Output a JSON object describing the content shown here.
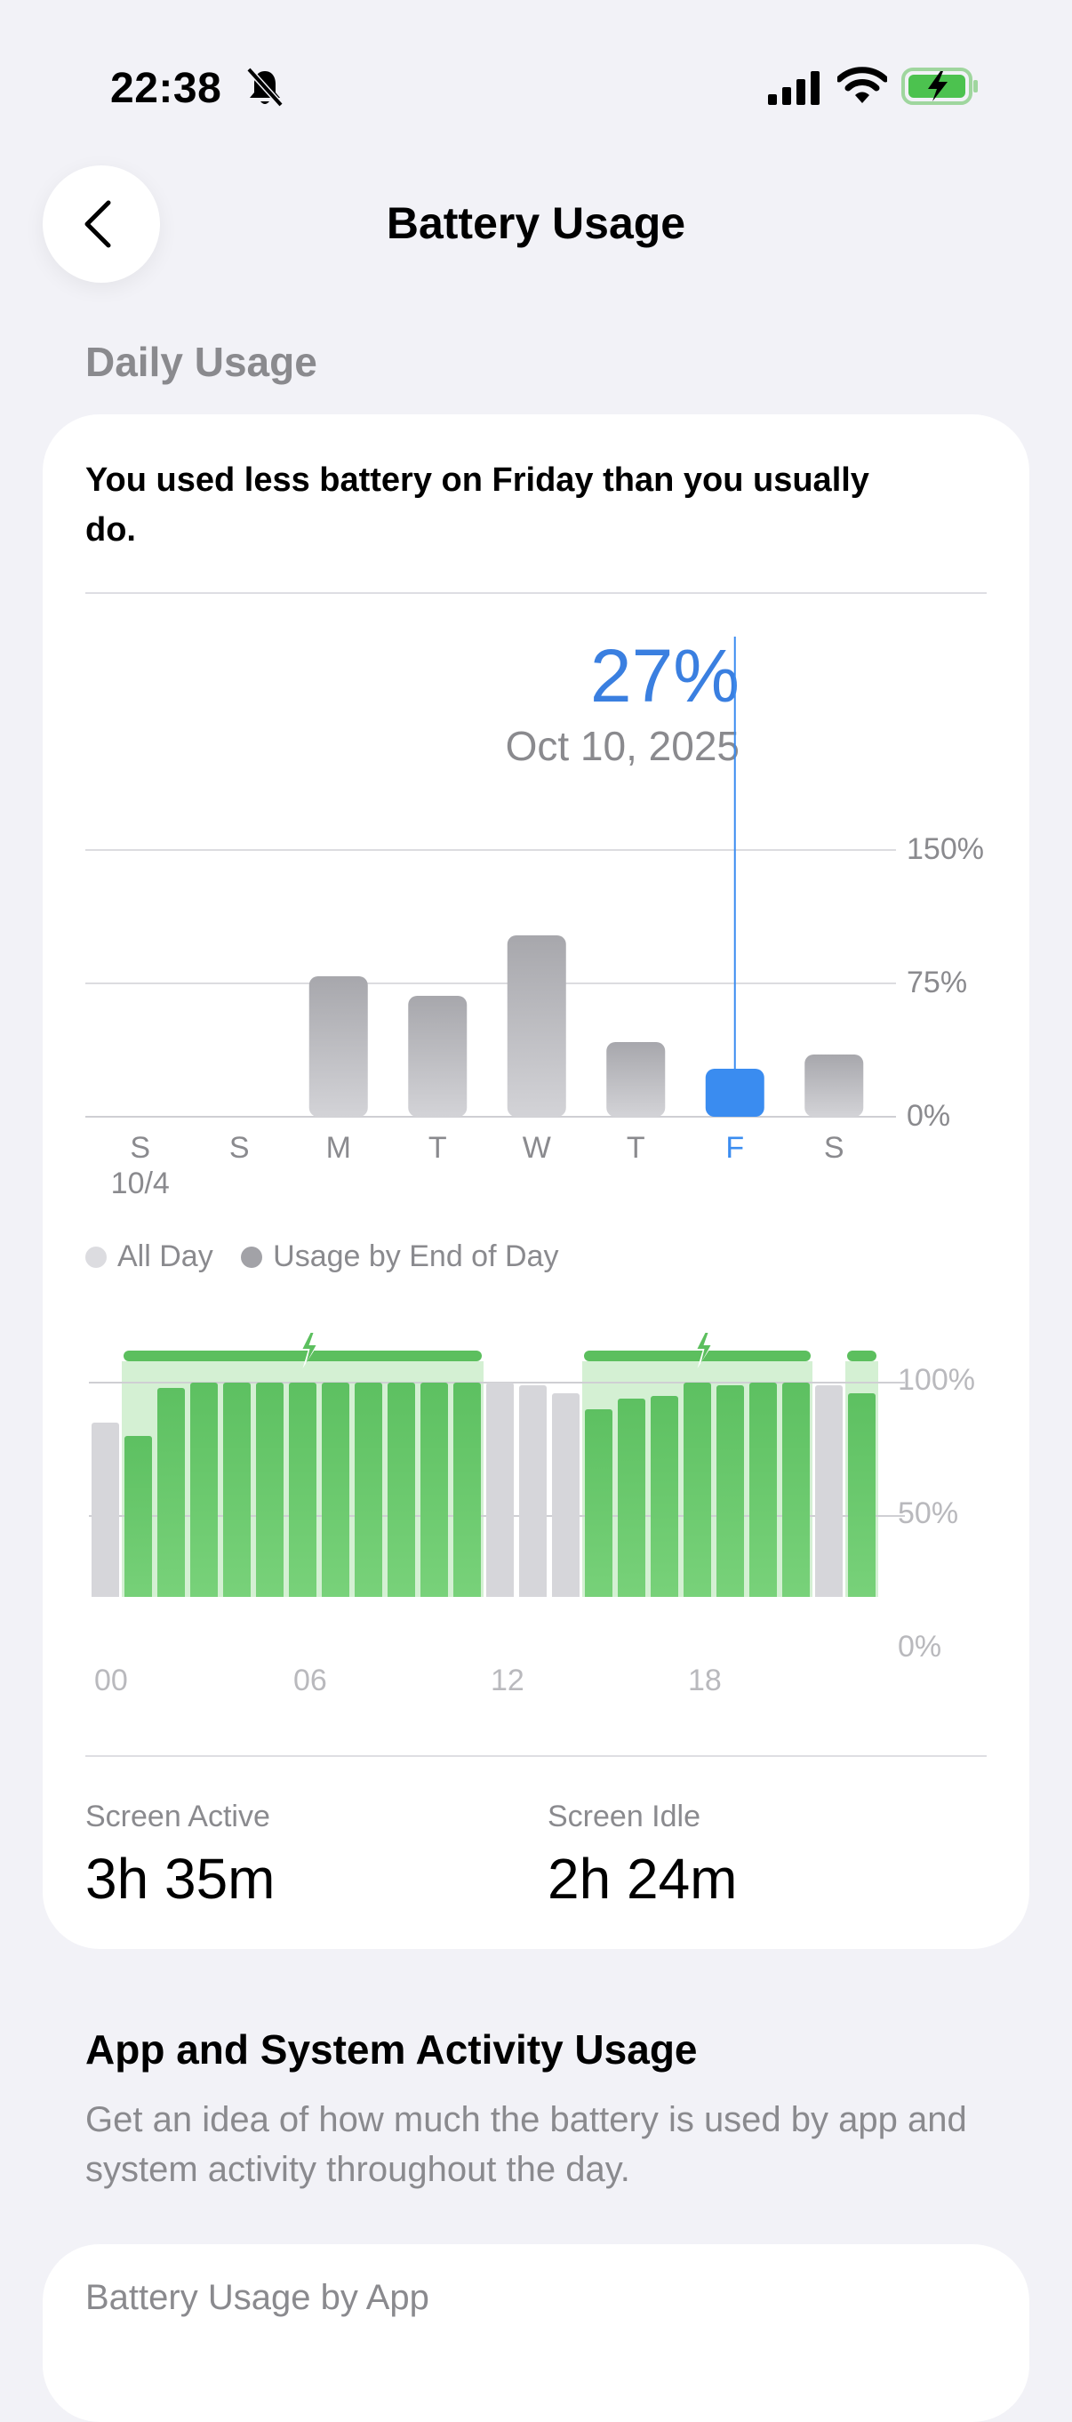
{
  "status_bar": {
    "time": "22:38",
    "icons": [
      "bell-slash-icon",
      "cellular-signal-icon",
      "wifi-icon",
      "battery-charging-icon"
    ]
  },
  "nav": {
    "title": "Battery Usage",
    "back_icon": "chevron-left-icon"
  },
  "daily": {
    "section_label": "Daily Usage",
    "headline": "You used less battery on Friday than you usually do.",
    "selected": {
      "percent": "27%",
      "date": "Oct 10, 2025"
    },
    "legend": [
      {
        "label": "All Day",
        "color": "#d9d9dd"
      },
      {
        "label": "Usage by End of Day",
        "color": "#9e9ea3"
      }
    ]
  },
  "chart_data": [
    {
      "type": "bar",
      "categories": [
        "S",
        "S",
        "M",
        "T",
        "W",
        "T",
        "F",
        "S"
      ],
      "sublabels": [
        "10/4",
        "",
        "",
        "",
        "",
        "",
        "",
        ""
      ],
      "values": [
        0,
        0,
        79,
        68,
        102,
        42,
        27,
        35
      ],
      "selected_index": 6,
      "y_ticks": [
        "150%",
        "75%",
        "0%"
      ],
      "ylim": [
        0,
        150
      ],
      "colors": {
        "bar": "#b5b5ba",
        "selected": "#3a8cf0"
      }
    },
    {
      "type": "bar",
      "x_ticks": [
        "00",
        "06",
        "12",
        "18"
      ],
      "y_ticks": [
        "100%",
        "50%",
        "0%"
      ],
      "ylim": [
        0,
        100
      ],
      "values": [
        85,
        80,
        98,
        100,
        100,
        100,
        100,
        100,
        100,
        100,
        100,
        100,
        100,
        99,
        96,
        90,
        94,
        95,
        100,
        99,
        100,
        100,
        99,
        96
      ],
      "charging": [
        false,
        true,
        true,
        true,
        true,
        true,
        true,
        true,
        true,
        true,
        true,
        true,
        false,
        false,
        false,
        true,
        true,
        true,
        true,
        true,
        true,
        true,
        false,
        true
      ],
      "colors": {
        "charging_bar": "#5fc463",
        "idle_bar": "#d6d6da",
        "charging_band": "#c9ecc8",
        "charging_line": "#5cbf5e"
      }
    }
  ],
  "stats": [
    {
      "label": "Screen Active",
      "value": "3h 35m"
    },
    {
      "label": "Screen Idle",
      "value": "2h 24m"
    }
  ],
  "activity": {
    "title": "App and System Activity Usage",
    "description": "Get an idea of how much the battery is used by app and system activity throughout the day."
  },
  "app_usage": {
    "title": "Battery Usage by App"
  }
}
